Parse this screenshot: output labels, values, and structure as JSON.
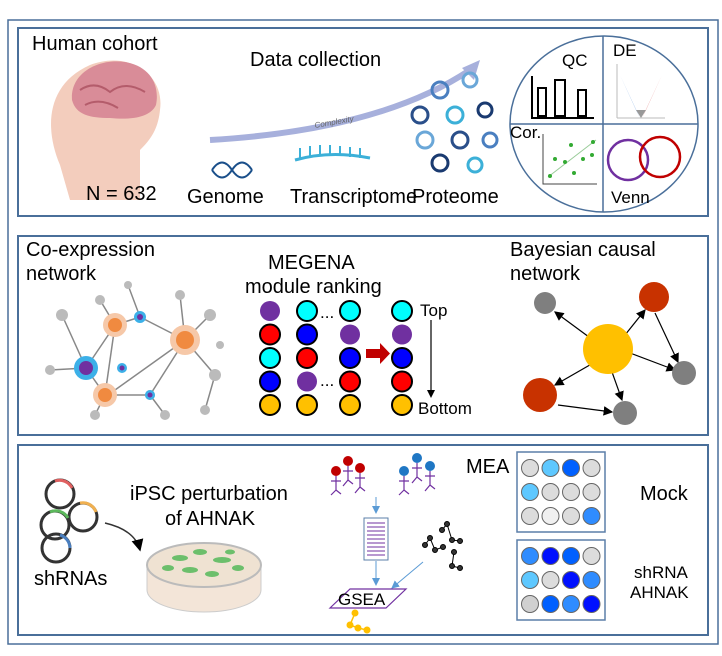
{
  "panel1": {
    "cohort_title": "Human cohort",
    "cohort_n": "N = 632",
    "data_collection": "Data collection",
    "complexity": "Complexity",
    "omics": [
      "Genome",
      "Transcriptome",
      "Proteome"
    ],
    "analysis": {
      "qc": "QC",
      "de": "DE",
      "cor": "Cor.",
      "venn": "Venn"
    }
  },
  "panel2": {
    "coexpr_title_1": "Co-expression",
    "coexpr_title_2": "network",
    "megena_title_1": "MEGENA",
    "megena_title_2": "module ranking",
    "ellipsis": "...",
    "top": "Top",
    "bottom": "Bottom",
    "bayes_title_1": "Bayesian causal",
    "bayes_title_2": "network",
    "module_columns": [
      [
        "#7030a0",
        "#ff0000",
        "#00ffff",
        "#0000ff",
        "#ffc000"
      ],
      [
        "#00ffff",
        "#0000ff",
        "#ff0000",
        "#7030a0",
        "#ffc000"
      ],
      [
        "#00ffff",
        "#7030a0",
        "#0000ff",
        "#ff0000",
        "#ffc000"
      ],
      [
        "#00ffff",
        "#7030a0",
        "#0000ff",
        "#ff0000",
        "#ffc000"
      ]
    ]
  },
  "panel3": {
    "shrnas": "shRNAs",
    "ipsc_1": "iPSC perturbation",
    "ipsc_2": "of AHNAK",
    "gsea": "GSEA",
    "mea": "MEA",
    "mock": "Mock",
    "shrna_1": "shRNA",
    "shrna_2": "AHNAK",
    "mock_wells": [
      "#dcdcdc",
      "#5ec8ff",
      "#0060ff",
      "#dcdcdc",
      "#5ec8ff",
      "#dcdcdc",
      "#dcdcdc",
      "#dcdcdc",
      "#dcdcdc",
      "#f0f0f0",
      "#dcdcdc",
      "#2f8cff"
    ],
    "shrna_wells": [
      "#2f8cff",
      "#0010ff",
      "#0060ff",
      "#dcdcdc",
      "#5ec8ff",
      "#dcdcdc",
      "#0010ff",
      "#2f8cff",
      "#d0d0d0",
      "#0060ff",
      "#2f8cff",
      "#0010ff"
    ]
  }
}
